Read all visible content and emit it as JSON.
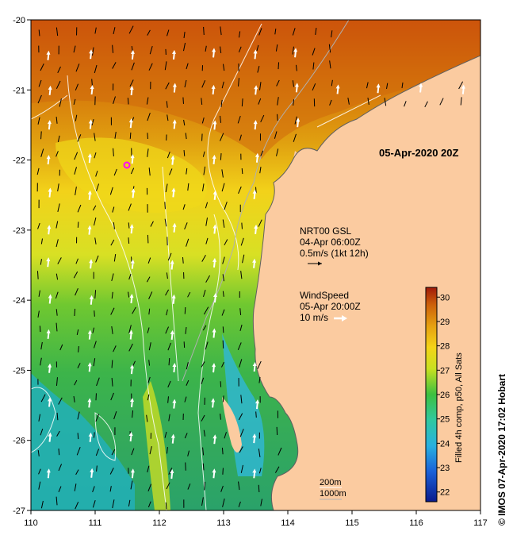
{
  "map": {
    "timestamp_label": "05-Apr-2020 20Z",
    "x_ticks": [
      "110",
      "111",
      "112",
      "113",
      "114",
      "115",
      "116",
      "117"
    ],
    "y_ticks": [
      "-20",
      "-21",
      "-22",
      "-23",
      "-24",
      "-25",
      "-26",
      "-27"
    ],
    "lon_range": [
      110,
      117
    ],
    "lat_range": [
      -27,
      -20
    ],
    "current_legend": {
      "title": "NRT00 GSL",
      "time": "04-Apr 06:00Z",
      "scale": "0.5m/s (1kt 12h)"
    },
    "wind_legend": {
      "title": "WindSpeed",
      "time": "05-Apr 20:00Z",
      "scale": "10 m/s"
    },
    "depth_legend": [
      "200m",
      "1000m"
    ],
    "colors": {
      "land": "#fbcba0",
      "coast_line": "#a0a0a0",
      "contour": "#ffffff",
      "marker": "#ff00ff"
    }
  },
  "colorbar": {
    "label": "Filled 4h comp, p50, All Sats",
    "ticks": [
      "22",
      "23",
      "24",
      "25",
      "26",
      "27",
      "28",
      "29",
      "30"
    ],
    "range": [
      21.6,
      30.4
    ]
  },
  "credit": "© IMOS 07-Apr-2020 17:02 Hobart"
}
